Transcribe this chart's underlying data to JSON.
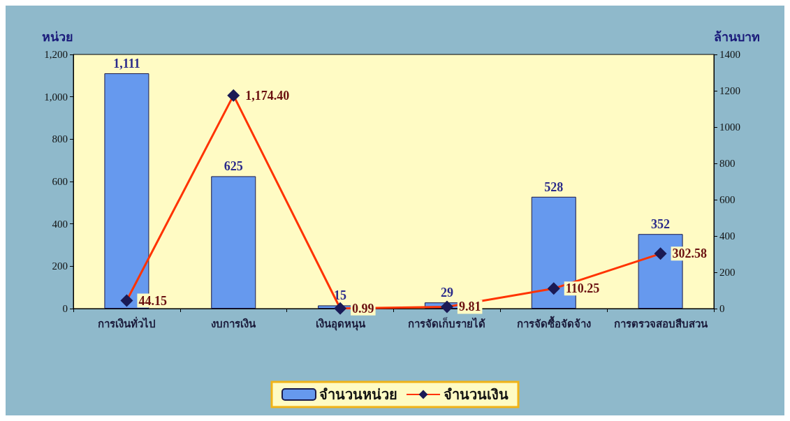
{
  "chart_data": {
    "type": "bar",
    "ylabel": "หน่วย",
    "y2label": "ล้านบาท",
    "categories": [
      "การเงินทั่วไป",
      "งบการเงิน",
      "เงินอุดหนุน",
      "การจัดเก็บรายได้",
      "การจัดซื้อจัดจ้าง",
      "การตรวจสอบสืบสวน"
    ],
    "series": [
      {
        "name": "จำนวนหน่วย",
        "color": "#6699ee",
        "values": [
          1111,
          625,
          15,
          29,
          528,
          352
        ],
        "value_labels": [
          "1,111",
          "625",
          "15",
          "29",
          "528",
          "352"
        ]
      },
      {
        "name": "จำนวนเงิน",
        "type": "line",
        "axis": "y2",
        "color": "#ff3300",
        "values": [
          44.15,
          1174.4,
          0.99,
          9.81,
          110.25,
          302.58
        ],
        "value_labels": [
          "44.15",
          "1,174.40",
          "0.99",
          "9.81",
          "110.25",
          "302.58"
        ]
      }
    ],
    "ylim": [
      0,
      1200
    ],
    "yticks": [
      0,
      200,
      400,
      600,
      800,
      {
        "value": 1000,
        "label": "1,000"
      },
      {
        "value": 1200,
        "label": "1,200"
      }
    ],
    "y2lim": [
      0,
      1400
    ],
    "y2ticks": [
      0,
      200,
      400,
      600,
      800,
      1000,
      1200,
      1400
    ],
    "marker": "diamond",
    "grid": false,
    "legend": "bottom"
  }
}
